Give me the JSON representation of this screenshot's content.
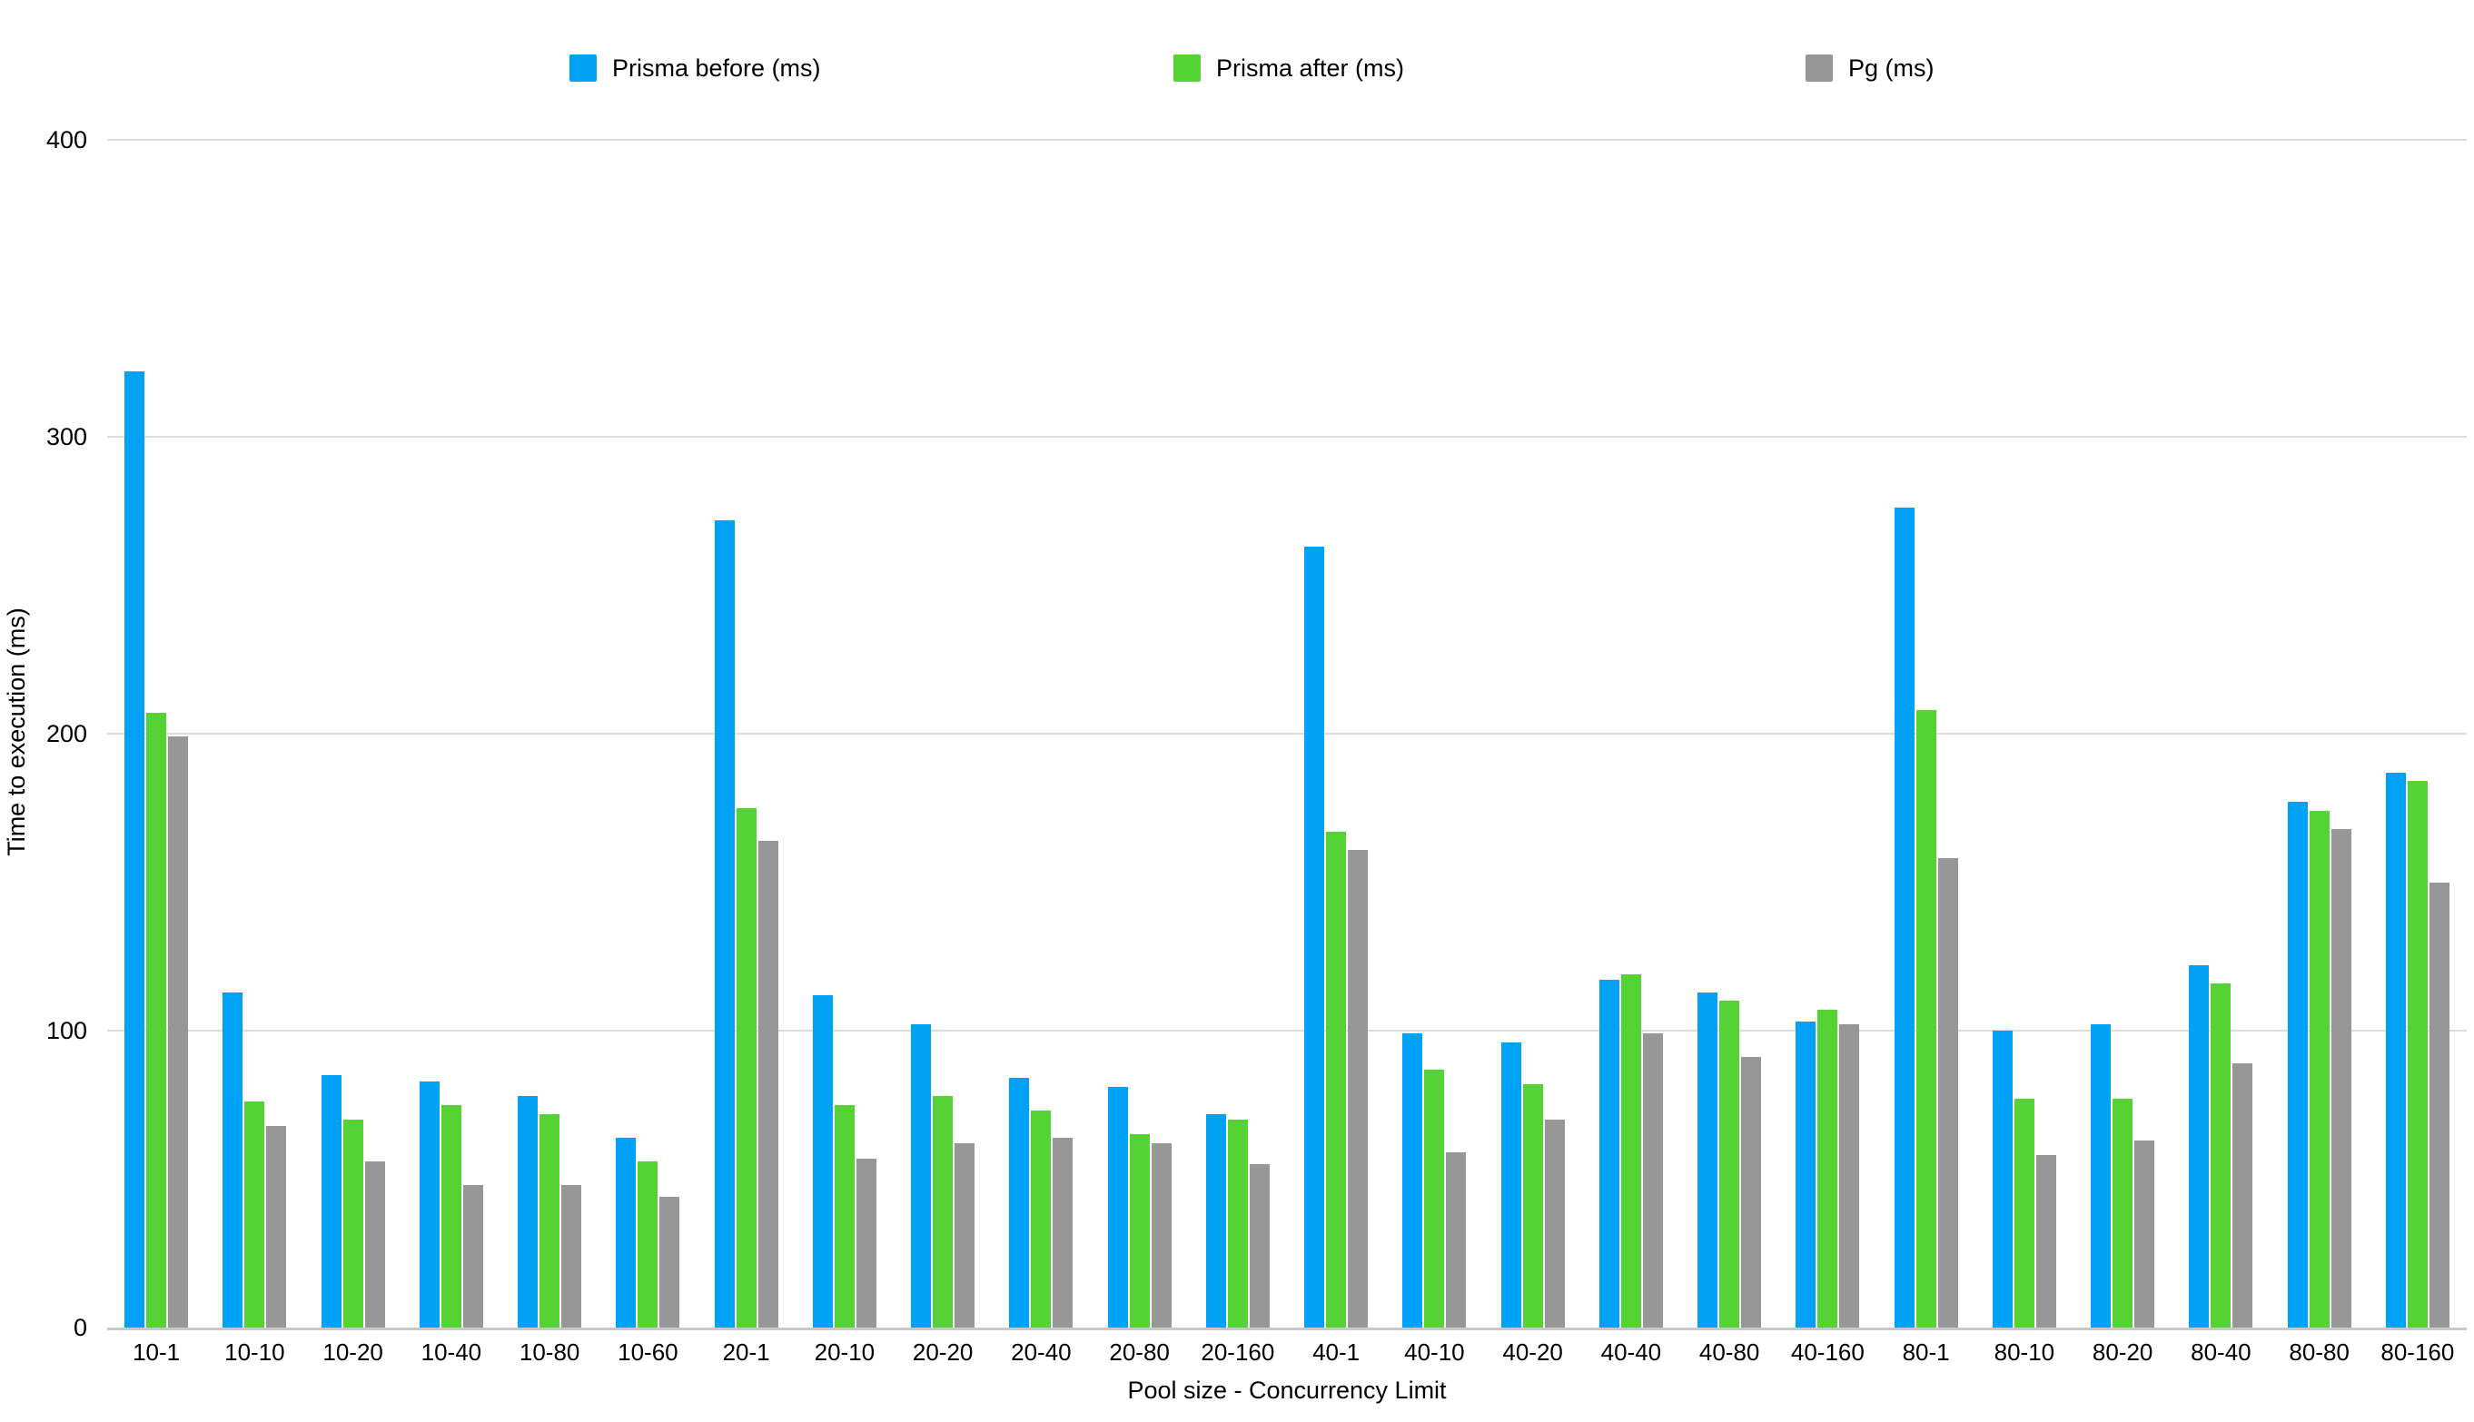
{
  "colors": {
    "background": "#FFFFFF",
    "grid": "#DCDCDC",
    "baseline": "#C8C8C8",
    "text": "#000000"
  },
  "chart_data": {
    "type": "bar",
    "title": "",
    "ylabel": "Time to execution (ms)",
    "xlabel": "Pool size - Concurrency Limit",
    "ylim": [
      0,
      400
    ],
    "y_ticks": [
      400,
      300,
      200,
      100,
      0
    ],
    "grid": true,
    "legend_position": "top",
    "categories": [
      "10-1",
      "10-10",
      "10-20",
      "10-40",
      "10-80",
      "10-60",
      "20-1",
      "20-10",
      "20-20",
      "20-40",
      "20-80",
      "20-160",
      "40-1",
      "40-10",
      "40-20",
      "40-40",
      "40-80",
      "40-160",
      "80-1",
      "80-10",
      "80-20",
      "80-40",
      "80-80",
      "80-160"
    ],
    "series": [
      {
        "name": "Prisma before (ms)",
        "color": "#00A2F5",
        "values": [
          322,
          113,
          85,
          83,
          78,
          64,
          272,
          112,
          102,
          84,
          81,
          72,
          263,
          99,
          96,
          117,
          113,
          103,
          276,
          100,
          102,
          122,
          177,
          187
        ]
      },
      {
        "name": "Prisma after (ms)",
        "color": "#55D334",
        "values": [
          207,
          76,
          70,
          75,
          72,
          56,
          175,
          75,
          78,
          73,
          65,
          70,
          167,
          87,
          82,
          119,
          110,
          107,
          208,
          77,
          77,
          116,
          174,
          184
        ]
      },
      {
        "name": "Pg (ms)",
        "color": "#979797",
        "values": [
          199,
          68,
          56,
          48,
          48,
          44,
          164,
          57,
          62,
          64,
          62,
          55,
          161,
          59,
          70,
          99,
          91,
          102,
          158,
          58,
          63,
          89,
          168,
          150
        ]
      }
    ]
  }
}
